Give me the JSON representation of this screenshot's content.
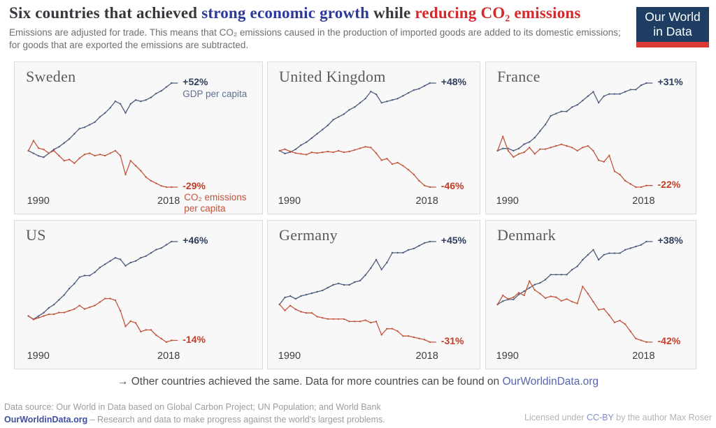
{
  "colors": {
    "title_blue": "#2d3a99",
    "title_red": "#d4292d",
    "gdp_line": "#4d5d7c",
    "gdp_label": "#2e3f5c",
    "co2_line": "#c2573f",
    "co2_label": "#c23d27",
    "logo_navy": "#1d3d63",
    "logo_red": "#d93a35"
  },
  "header": {
    "title": {
      "part1": "Six countries that achieved ",
      "part2": "strong economic growth",
      "part3": " while ",
      "part4": "reducing CO₂ emissions"
    },
    "subtitle": "Emissions are adjusted for trade. This means that CO₂ emissions caused in the production of imported goods are added to its domestic emissions; for goods that are exported the emissions are subtracted.",
    "logo": {
      "line1": "Our World",
      "line2": "in Data"
    }
  },
  "chart_data": [
    {
      "type": "line",
      "title": "Sweden",
      "x": {
        "start": 1990,
        "end": 2018,
        "step": 1,
        "start_label": "1990",
        "end_label": "2018"
      },
      "value_unit": "percent change vs 1990",
      "series": [
        {
          "name": "GDP per capita",
          "role": "gdp",
          "end_label": "+52%",
          "legend": "GDP per capita",
          "values": [
            0,
            -2,
            -4,
            -5,
            -2,
            1,
            3,
            6,
            9,
            13,
            17,
            18,
            20,
            22,
            26,
            29,
            33,
            38,
            36,
            29,
            36,
            39,
            38,
            39,
            41,
            44,
            46,
            49,
            52
          ]
        },
        {
          "name": "CO₂ emissions per capita",
          "role": "co2",
          "end_label": "-29%",
          "legend_lines": [
            "CO₂ emissions",
            "per capita"
          ],
          "values": [
            0,
            8,
            2,
            1,
            -2,
            0,
            -4,
            -8,
            -7,
            -10,
            -6,
            -3,
            -2,
            -4,
            -3,
            -4,
            -2,
            0,
            -4,
            -19,
            -8,
            -12,
            -16,
            -21,
            -24,
            -26,
            -28,
            -29,
            -29
          ]
        }
      ]
    },
    {
      "type": "line",
      "title": "United Kingdom",
      "x": {
        "start": 1990,
        "end": 2018,
        "step": 1,
        "start_label": "1990",
        "end_label": "2018"
      },
      "value_unit": "percent change vs 1990",
      "series": [
        {
          "name": "GDP per capita",
          "role": "gdp",
          "end_label": "+48%",
          "values": [
            0,
            -2,
            -1,
            1,
            4,
            6,
            9,
            12,
            15,
            18,
            22,
            24,
            26,
            29,
            31,
            34,
            37,
            42,
            40,
            34,
            35,
            36,
            37,
            39,
            41,
            43,
            44,
            46,
            48
          ]
        },
        {
          "name": "CO₂ emissions per capita",
          "role": "co2",
          "end_label": "-46%",
          "values": [
            0,
            2,
            -1,
            -3,
            -4,
            -5,
            -2,
            -3,
            -2,
            -1,
            -2,
            0,
            -2,
            -1,
            1,
            3,
            5,
            4,
            -3,
            -12,
            -10,
            -17,
            -15,
            -19,
            -24,
            -30,
            -38,
            -44,
            -46
          ]
        }
      ]
    },
    {
      "type": "line",
      "title": "France",
      "x": {
        "start": 1990,
        "end": 2018,
        "step": 1,
        "start_label": "1990",
        "end_label": "2018"
      },
      "value_unit": "percent change vs 1990",
      "series": [
        {
          "name": "GDP per capita",
          "role": "gdp",
          "end_label": "+31%",
          "values": [
            0,
            1,
            1,
            0,
            1,
            3,
            4,
            6,
            9,
            12,
            16,
            17,
            18,
            18,
            20,
            21,
            23,
            25,
            27,
            22,
            25,
            26,
            26,
            26,
            27,
            28,
            28,
            30,
            31
          ]
        },
        {
          "name": "CO₂ emissions per capita",
          "role": "co2",
          "end_label": "-22%",
          "values": [
            0,
            9,
            0,
            -4,
            -2,
            -1,
            2,
            -2,
            1,
            1,
            2,
            3,
            4,
            3,
            2,
            0,
            2,
            3,
            0,
            -6,
            -7,
            -3,
            -13,
            -15,
            -19,
            -21,
            -23,
            -23,
            -22
          ]
        }
      ]
    },
    {
      "type": "line",
      "title": "US",
      "x": {
        "start": 1990,
        "end": 2018,
        "step": 1,
        "start_label": "1990",
        "end_label": "2018"
      },
      "value_unit": "percent change vs 1990",
      "series": [
        {
          "name": "GDP per capita",
          "role": "gdp",
          "end_label": "+46%",
          "values": [
            0,
            -2,
            0,
            2,
            5,
            7,
            10,
            13,
            17,
            20,
            24,
            25,
            25,
            27,
            30,
            32,
            34,
            36,
            35,
            31,
            33,
            34,
            36,
            37,
            39,
            41,
            42,
            44,
            46
          ]
        },
        {
          "name": "CO₂ emissions per capita",
          "role": "co2",
          "end_label": "-14%",
          "values": [
            0,
            -2,
            -1,
            0,
            1,
            1,
            2,
            2,
            3,
            4,
            6,
            4,
            5,
            6,
            8,
            10,
            10,
            9,
            3,
            -6,
            -3,
            -4,
            -9,
            -8,
            -8,
            -11,
            -13,
            -15,
            -14
          ]
        }
      ]
    },
    {
      "type": "line",
      "title": "Germany",
      "x": {
        "start": 1990,
        "end": 2018,
        "step": 1,
        "start_label": "1990",
        "end_label": "2018"
      },
      "value_unit": "percent change vs 1990",
      "series": [
        {
          "name": "GDP per capita",
          "role": "gdp",
          "end_label": "+45%",
          "values": [
            0,
            5,
            6,
            4,
            6,
            7,
            8,
            9,
            10,
            12,
            14,
            15,
            14,
            14,
            16,
            17,
            21,
            26,
            32,
            25,
            30,
            37,
            37,
            37,
            39,
            40,
            42,
            44,
            45
          ]
        },
        {
          "name": "CO₂ emissions per capita",
          "role": "co2",
          "end_label": "-31%",
          "values": [
            0,
            -5,
            -1,
            -4,
            -6,
            -7,
            -7,
            -10,
            -11,
            -12,
            -12,
            -12,
            -12,
            -14,
            -14,
            -14,
            -13,
            -15,
            -14,
            -25,
            -20,
            -20,
            -22,
            -26,
            -26,
            -27,
            -28,
            -29,
            -31
          ]
        }
      ]
    },
    {
      "type": "line",
      "title": "Denmark",
      "x": {
        "start": 1990,
        "end": 2018,
        "step": 1,
        "start_label": "1990",
        "end_label": "2018"
      },
      "value_unit": "percent change vs 1990",
      "series": [
        {
          "name": "GDP per capita",
          "role": "gdp",
          "end_label": "+38%",
          "values": [
            0,
            2,
            3,
            3,
            6,
            8,
            10,
            12,
            13,
            15,
            18,
            18,
            18,
            18,
            21,
            23,
            27,
            30,
            33,
            27,
            30,
            31,
            31,
            31,
            33,
            34,
            35,
            36,
            38
          ]
        },
        {
          "name": "CO₂ emissions per capita",
          "role": "co2",
          "end_label": "-42%",
          "values": [
            0,
            10,
            6,
            8,
            13,
            10,
            26,
            16,
            12,
            7,
            9,
            8,
            4,
            6,
            3,
            1,
            20,
            12,
            3,
            -6,
            -5,
            -12,
            -20,
            -18,
            -22,
            -30,
            -38,
            -40,
            -42
          ]
        }
      ]
    }
  ],
  "footnote": {
    "text": "→ Other countries achieved the same. Data for more countries can be found on ",
    "link": "OurWorldinData.org"
  },
  "footer": {
    "source_line": "Data source: Our World in Data based on Global Carbon Project; UN Population; and World Bank",
    "brand": "OurWorldinData.org",
    "tagline": " – Research and data to make progress against the world's largest problems.",
    "license_pre": "Licensed under ",
    "license_link": "CC-BY",
    "license_post": " by the author Max Roser"
  }
}
